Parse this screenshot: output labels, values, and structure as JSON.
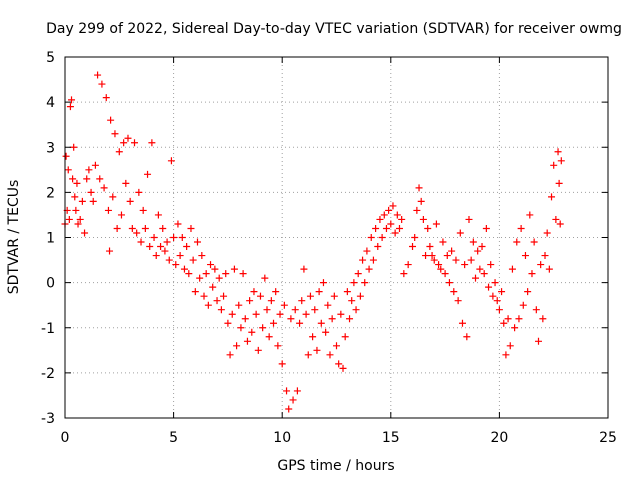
{
  "chart_data": {
    "type": "scatter",
    "title": "Day 299 of 2022, Sidereal Day-to-day VTEC variation (SDTVAR) for receiver owmg",
    "xlabel": "GPS time / hours",
    "ylabel": "SDTVAR / TECUs",
    "xlim": [
      0,
      25
    ],
    "ylim": [
      -3,
      5
    ],
    "xticks": [
      0,
      5,
      10,
      15,
      20,
      25
    ],
    "yticks": [
      -3,
      -2,
      -1,
      0,
      1,
      2,
      3,
      4,
      5
    ],
    "xtick_labels": [
      "0",
      "5",
      "10",
      "15",
      "20",
      "25"
    ],
    "ytick_labels": [
      "-3",
      "-2",
      "-1",
      "0",
      "1",
      "2",
      "3",
      "4",
      "5"
    ],
    "grid": true,
    "marker": "+",
    "color": "#ff0000",
    "series": [
      {
        "name": "SDTVAR",
        "points": [
          [
            0.0,
            1.3
          ],
          [
            0.05,
            2.8
          ],
          [
            0.1,
            1.6
          ],
          [
            0.15,
            2.5
          ],
          [
            0.2,
            1.4
          ],
          [
            0.25,
            3.9
          ],
          [
            0.3,
            4.05
          ],
          [
            0.35,
            2.3
          ],
          [
            0.4,
            3.0
          ],
          [
            0.45,
            1.9
          ],
          [
            0.5,
            1.6
          ],
          [
            0.55,
            2.2
          ],
          [
            0.6,
            1.3
          ],
          [
            0.7,
            1.4
          ],
          [
            0.8,
            1.8
          ],
          [
            0.9,
            1.1
          ],
          [
            1.0,
            2.3
          ],
          [
            1.1,
            2.5
          ],
          [
            1.2,
            2.0
          ],
          [
            1.3,
            1.8
          ],
          [
            1.4,
            2.6
          ],
          [
            1.5,
            4.6
          ],
          [
            1.6,
            2.3
          ],
          [
            1.7,
            4.4
          ],
          [
            1.8,
            2.1
          ],
          [
            1.9,
            4.1
          ],
          [
            2.0,
            1.6
          ],
          [
            2.05,
            0.7
          ],
          [
            2.1,
            3.6
          ],
          [
            2.2,
            1.9
          ],
          [
            2.3,
            3.3
          ],
          [
            2.4,
            1.2
          ],
          [
            2.5,
            2.9
          ],
          [
            2.6,
            1.5
          ],
          [
            2.7,
            3.1
          ],
          [
            2.8,
            2.2
          ],
          [
            2.9,
            3.2
          ],
          [
            3.0,
            1.8
          ],
          [
            3.1,
            1.2
          ],
          [
            3.2,
            3.1
          ],
          [
            3.3,
            1.1
          ],
          [
            3.4,
            2.0
          ],
          [
            3.5,
            0.9
          ],
          [
            3.6,
            1.6
          ],
          [
            3.7,
            1.2
          ],
          [
            3.8,
            2.4
          ],
          [
            3.9,
            0.8
          ],
          [
            4.0,
            3.1
          ],
          [
            4.1,
            1.0
          ],
          [
            4.2,
            0.6
          ],
          [
            4.3,
            1.5
          ],
          [
            4.4,
            0.8
          ],
          [
            4.5,
            1.2
          ],
          [
            4.6,
            0.7
          ],
          [
            4.7,
            0.9
          ],
          [
            4.8,
            0.5
          ],
          [
            4.9,
            2.7
          ],
          [
            5.0,
            1.0
          ],
          [
            5.1,
            0.4
          ],
          [
            5.2,
            1.3
          ],
          [
            5.3,
            0.6
          ],
          [
            5.4,
            1.0
          ],
          [
            5.5,
            0.3
          ],
          [
            5.6,
            0.8
          ],
          [
            5.7,
            0.2
          ],
          [
            5.8,
            1.2
          ],
          [
            5.9,
            0.5
          ],
          [
            6.0,
            -0.2
          ],
          [
            6.1,
            0.9
          ],
          [
            6.2,
            0.1
          ],
          [
            6.3,
            0.6
          ],
          [
            6.4,
            -0.3
          ],
          [
            6.5,
            0.2
          ],
          [
            6.6,
            -0.5
          ],
          [
            6.7,
            0.4
          ],
          [
            6.8,
            -0.1
          ],
          [
            6.9,
            0.3
          ],
          [
            7.0,
            -0.4
          ],
          [
            7.1,
            0.1
          ],
          [
            7.2,
            -0.6
          ],
          [
            7.3,
            -0.3
          ],
          [
            7.4,
            0.2
          ],
          [
            7.5,
            -0.9
          ],
          [
            7.6,
            -1.6
          ],
          [
            7.7,
            -0.7
          ],
          [
            7.8,
            0.3
          ],
          [
            7.9,
            -1.4
          ],
          [
            8.0,
            -0.5
          ],
          [
            8.1,
            -1.0
          ],
          [
            8.2,
            0.2
          ],
          [
            8.3,
            -0.8
          ],
          [
            8.4,
            -1.3
          ],
          [
            8.5,
            -0.4
          ],
          [
            8.6,
            -1.1
          ],
          [
            8.7,
            -0.2
          ],
          [
            8.8,
            -0.7
          ],
          [
            8.9,
            -1.5
          ],
          [
            9.0,
            -0.3
          ],
          [
            9.1,
            -1.0
          ],
          [
            9.2,
            0.1
          ],
          [
            9.3,
            -0.6
          ],
          [
            9.4,
            -1.2
          ],
          [
            9.5,
            -0.4
          ],
          [
            9.6,
            -0.9
          ],
          [
            9.7,
            -0.2
          ],
          [
            9.8,
            -1.4
          ],
          [
            9.9,
            -0.7
          ],
          [
            10.0,
            -1.8
          ],
          [
            10.1,
            -0.5
          ],
          [
            10.2,
            -2.4
          ],
          [
            10.3,
            -2.8
          ],
          [
            10.4,
            -0.8
          ],
          [
            10.5,
            -2.6
          ],
          [
            10.6,
            -0.6
          ],
          [
            10.7,
            -2.4
          ],
          [
            10.8,
            -0.9
          ],
          [
            10.9,
            -0.4
          ],
          [
            11.0,
            0.3
          ],
          [
            11.1,
            -0.7
          ],
          [
            11.2,
            -1.6
          ],
          [
            11.3,
            -0.3
          ],
          [
            11.4,
            -1.2
          ],
          [
            11.5,
            -0.6
          ],
          [
            11.6,
            -1.5
          ],
          [
            11.7,
            -0.2
          ],
          [
            11.8,
            -0.9
          ],
          [
            11.9,
            0.0
          ],
          [
            12.0,
            -1.1
          ],
          [
            12.1,
            -0.5
          ],
          [
            12.2,
            -1.6
          ],
          [
            12.3,
            -0.8
          ],
          [
            12.4,
            -0.3
          ],
          [
            12.5,
            -1.4
          ],
          [
            12.6,
            -1.8
          ],
          [
            12.7,
            -0.7
          ],
          [
            12.8,
            -1.9
          ],
          [
            12.9,
            -1.2
          ],
          [
            13.0,
            -0.2
          ],
          [
            13.1,
            -0.8
          ],
          [
            13.2,
            -0.4
          ],
          [
            13.3,
            0.0
          ],
          [
            13.4,
            -0.6
          ],
          [
            13.5,
            0.2
          ],
          [
            13.6,
            -0.3
          ],
          [
            13.7,
            0.5
          ],
          [
            13.8,
            0.0
          ],
          [
            13.9,
            0.7
          ],
          [
            14.0,
            0.3
          ],
          [
            14.1,
            1.0
          ],
          [
            14.2,
            0.5
          ],
          [
            14.3,
            1.2
          ],
          [
            14.4,
            0.8
          ],
          [
            14.5,
            1.4
          ],
          [
            14.6,
            1.0
          ],
          [
            14.7,
            1.5
          ],
          [
            14.8,
            1.2
          ],
          [
            14.9,
            1.6
          ],
          [
            15.0,
            1.3
          ],
          [
            15.1,
            1.7
          ],
          [
            15.2,
            1.1
          ],
          [
            15.3,
            1.5
          ],
          [
            15.4,
            1.2
          ],
          [
            15.5,
            1.4
          ],
          [
            15.6,
            0.2
          ],
          [
            15.8,
            0.4
          ],
          [
            16.0,
            0.8
          ],
          [
            16.1,
            1.0
          ],
          [
            16.2,
            1.6
          ],
          [
            16.3,
            2.1
          ],
          [
            16.4,
            1.8
          ],
          [
            16.5,
            1.4
          ],
          [
            16.6,
            0.6
          ],
          [
            16.7,
            1.2
          ],
          [
            16.8,
            0.8
          ],
          [
            16.9,
            0.6
          ],
          [
            17.0,
            0.5
          ],
          [
            17.1,
            1.3
          ],
          [
            17.2,
            0.4
          ],
          [
            17.3,
            0.3
          ],
          [
            17.4,
            0.9
          ],
          [
            17.5,
            0.2
          ],
          [
            17.6,
            0.6
          ],
          [
            17.7,
            0.0
          ],
          [
            17.8,
            0.7
          ],
          [
            17.9,
            -0.2
          ],
          [
            18.0,
            0.5
          ],
          [
            18.1,
            -0.4
          ],
          [
            18.2,
            1.1
          ],
          [
            18.3,
            -0.9
          ],
          [
            18.4,
            0.4
          ],
          [
            18.5,
            -1.2
          ],
          [
            18.6,
            1.4
          ],
          [
            18.7,
            0.5
          ],
          [
            18.8,
            0.9
          ],
          [
            18.9,
            0.1
          ],
          [
            19.0,
            0.7
          ],
          [
            19.1,
            0.3
          ],
          [
            19.2,
            0.8
          ],
          [
            19.3,
            0.2
          ],
          [
            19.4,
            1.2
          ],
          [
            19.5,
            -0.1
          ],
          [
            19.6,
            0.4
          ],
          [
            19.7,
            -0.3
          ],
          [
            19.8,
            0.0
          ],
          [
            19.9,
            -0.4
          ],
          [
            20.0,
            -0.6
          ],
          [
            20.1,
            -0.2
          ],
          [
            20.2,
            -0.9
          ],
          [
            20.3,
            -1.6
          ],
          [
            20.4,
            -0.8
          ],
          [
            20.5,
            -1.4
          ],
          [
            20.6,
            0.3
          ],
          [
            20.7,
            -1.0
          ],
          [
            20.8,
            0.9
          ],
          [
            20.9,
            -0.8
          ],
          [
            21.0,
            1.2
          ],
          [
            21.1,
            -0.5
          ],
          [
            21.2,
            0.6
          ],
          [
            21.3,
            -0.2
          ],
          [
            21.4,
            1.5
          ],
          [
            21.5,
            0.2
          ],
          [
            21.6,
            0.9
          ],
          [
            21.7,
            -0.6
          ],
          [
            21.8,
            -1.3
          ],
          [
            21.9,
            0.4
          ],
          [
            22.0,
            -0.8
          ],
          [
            22.1,
            0.6
          ],
          [
            22.2,
            1.1
          ],
          [
            22.3,
            0.3
          ],
          [
            22.4,
            1.9
          ],
          [
            22.5,
            2.6
          ],
          [
            22.6,
            1.4
          ],
          [
            22.7,
            2.9
          ],
          [
            22.75,
            2.2
          ],
          [
            22.8,
            1.3
          ],
          [
            22.85,
            2.7
          ]
        ]
      }
    ]
  }
}
